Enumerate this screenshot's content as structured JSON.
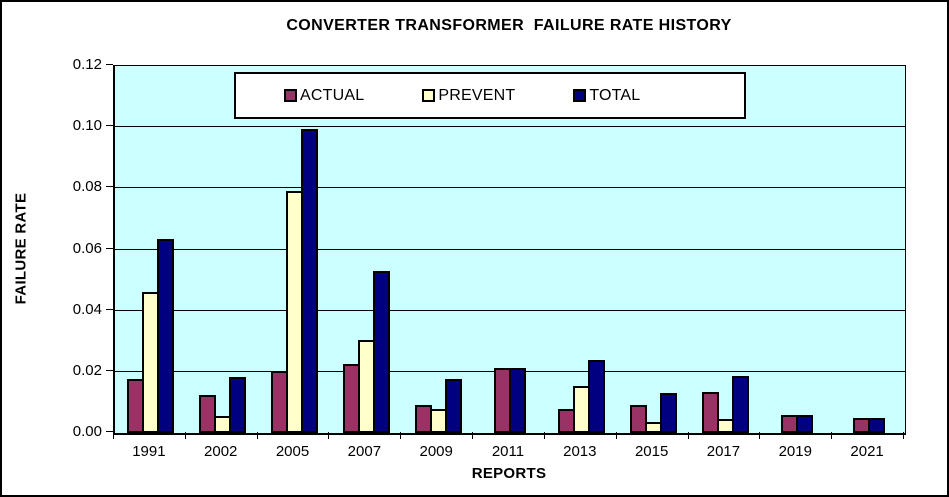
{
  "title": "CONVERTER TRANSFORMER  FAILURE RATE HISTORY",
  "colors": {
    "plot_background": "#CCFFFF",
    "chart_background": "#FFFFFF",
    "gridline": "#000000",
    "actual": "#993366",
    "prevent": "#FFFFCC",
    "total": "#000080"
  },
  "chart_data": {
    "type": "bar",
    "title": "CONVERTER TRANSFORMER  FAILURE RATE HISTORY",
    "xlabel": "REPORTS",
    "ylabel": "FAILURE RATE",
    "ylim": [
      0,
      0.12
    ],
    "ytick_step": 0.02,
    "ytick_labels": [
      "0.00",
      "0.02",
      "0.04",
      "0.06",
      "0.08",
      "0.10",
      "0.12"
    ],
    "grid": true,
    "legend_position": "top-center-inside",
    "categories": [
      "1991",
      "2002",
      "2005",
      "2007",
      "2009",
      "2011",
      "2013",
      "2015",
      "2017",
      "2019",
      "2021"
    ],
    "series": [
      {
        "name": "ACTUAL",
        "color": "#993366",
        "values": [
          0.0175,
          0.0125,
          0.0202,
          0.0225,
          0.009,
          0.0212,
          0.008,
          0.0093,
          0.0135,
          0.006,
          0.005
        ]
      },
      {
        "name": "PREVENT",
        "color": "#FFFFCC",
        "values": [
          0.046,
          0.0055,
          0.079,
          0.0305,
          0.008,
          0,
          0.0155,
          0.0035,
          0.0045,
          0,
          0
        ]
      },
      {
        "name": "TOTAL",
        "color": "#000080",
        "values": [
          0.0635,
          0.0182,
          0.0995,
          0.053,
          0.0175,
          0.0212,
          0.024,
          0.0132,
          0.0185,
          0.0058,
          0.0048
        ]
      }
    ]
  }
}
